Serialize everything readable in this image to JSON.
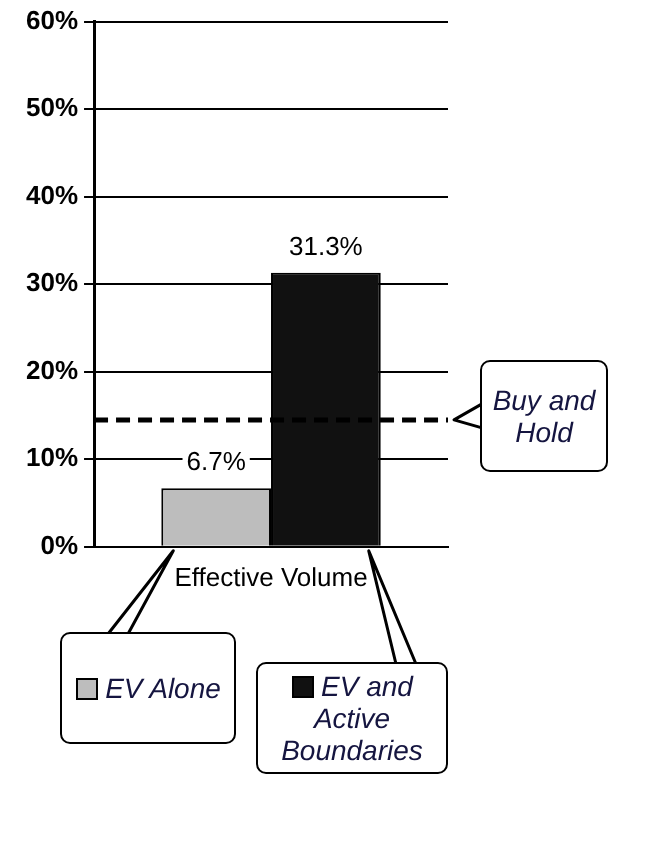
{
  "chart_data": {
    "type": "bar",
    "categories": [
      "Effective Volume"
    ],
    "series": [
      {
        "name": "EV Alone",
        "color": "#bdbdbd",
        "values": [
          6.7
        ],
        "value_labels": [
          "6.7%"
        ]
      },
      {
        "name": "EV and Active Boundaries",
        "color": "#111111",
        "values": [
          31.3
        ],
        "value_labels": [
          "31.3%"
        ]
      }
    ],
    "ylim": [
      0,
      60
    ],
    "yticks": [
      {
        "value": 0,
        "label": "0%"
      },
      {
        "value": 10,
        "label": "10%"
      },
      {
        "value": 20,
        "label": "20%"
      },
      {
        "value": 30,
        "label": "30%"
      },
      {
        "value": 40,
        "label": "40%"
      },
      {
        "value": 50,
        "label": "50%"
      },
      {
        "value": 60,
        "label": "60%"
      }
    ],
    "grid": "y",
    "legend": "bottom",
    "ref_lines": [
      {
        "axis": "y",
        "value": 14.5,
        "label": "Buy and Hold",
        "color": "#000000",
        "line_style": "dashed"
      }
    ]
  }
}
